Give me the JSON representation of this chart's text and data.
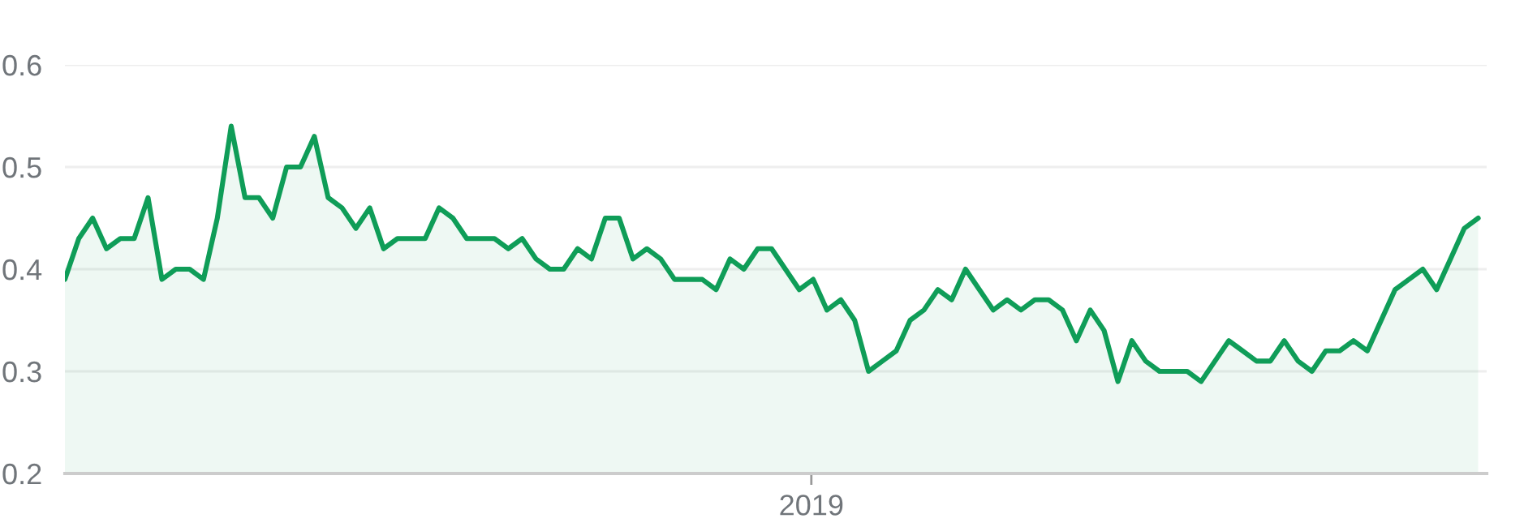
{
  "chart_data": {
    "type": "area",
    "categories": [
      null,
      null,
      null,
      null,
      null,
      null,
      null,
      null,
      null,
      null,
      null,
      null,
      null,
      null,
      null,
      null,
      null,
      null,
      null,
      null,
      null,
      null,
      null,
      null,
      null,
      null,
      null,
      null,
      null,
      null,
      null,
      null,
      null,
      null,
      null,
      null,
      null,
      null,
      null,
      null,
      null,
      null,
      null,
      null,
      null,
      null,
      null,
      null,
      null,
      null,
      null,
      null,
      null,
      null,
      null,
      null,
      null,
      null,
      null,
      null,
      null,
      null,
      null,
      null,
      null,
      null,
      null,
      null,
      null,
      null,
      null,
      null,
      null,
      null,
      null,
      null,
      null,
      null,
      null,
      null,
      null,
      null,
      null,
      null,
      null,
      null,
      null,
      null,
      null,
      null,
      null,
      null,
      null,
      null,
      null,
      null,
      null,
      null,
      null,
      null,
      null,
      null,
      null
    ],
    "series": [
      {
        "color": "#0f9d58",
        "values": [
          0.39,
          0.43,
          0.45,
          0.42,
          0.43,
          0.43,
          0.47,
          0.39,
          0.4,
          0.4,
          0.39,
          0.45,
          0.54,
          0.47,
          0.47,
          0.45,
          0.5,
          0.5,
          0.53,
          0.47,
          0.46,
          0.44,
          0.46,
          0.42,
          0.43,
          0.43,
          0.43,
          0.46,
          0.45,
          0.43,
          0.43,
          0.43,
          0.42,
          0.43,
          0.41,
          0.4,
          0.4,
          0.42,
          0.41,
          0.45,
          0.45,
          0.41,
          0.42,
          0.41,
          0.39,
          0.39,
          0.39,
          0.38,
          0.41,
          0.4,
          0.42,
          0.42,
          0.4,
          0.38,
          0.39,
          0.36,
          0.37,
          0.35,
          0.3,
          0.31,
          0.32,
          0.35,
          0.36,
          0.38,
          0.37,
          0.4,
          0.38,
          0.36,
          0.37,
          0.36,
          0.37,
          0.37,
          0.36,
          0.33,
          0.36,
          0.34,
          0.29,
          0.33,
          0.31,
          0.3,
          0.3,
          0.3,
          0.29,
          0.31,
          0.33,
          0.32,
          0.31,
          0.31,
          0.33,
          0.31,
          0.3,
          0.32,
          0.32,
          0.33,
          0.32,
          0.35,
          0.38,
          0.39,
          0.4,
          0.38,
          0.41,
          0.44,
          0.45
        ]
      }
    ],
    "annotations": [
      "2019"
    ],
    "ylim": [
      0.2,
      0.6
    ],
    "yticks": [
      0.2,
      0.3,
      0.4,
      0.5,
      0.6
    ],
    "grid": "y"
  }
}
